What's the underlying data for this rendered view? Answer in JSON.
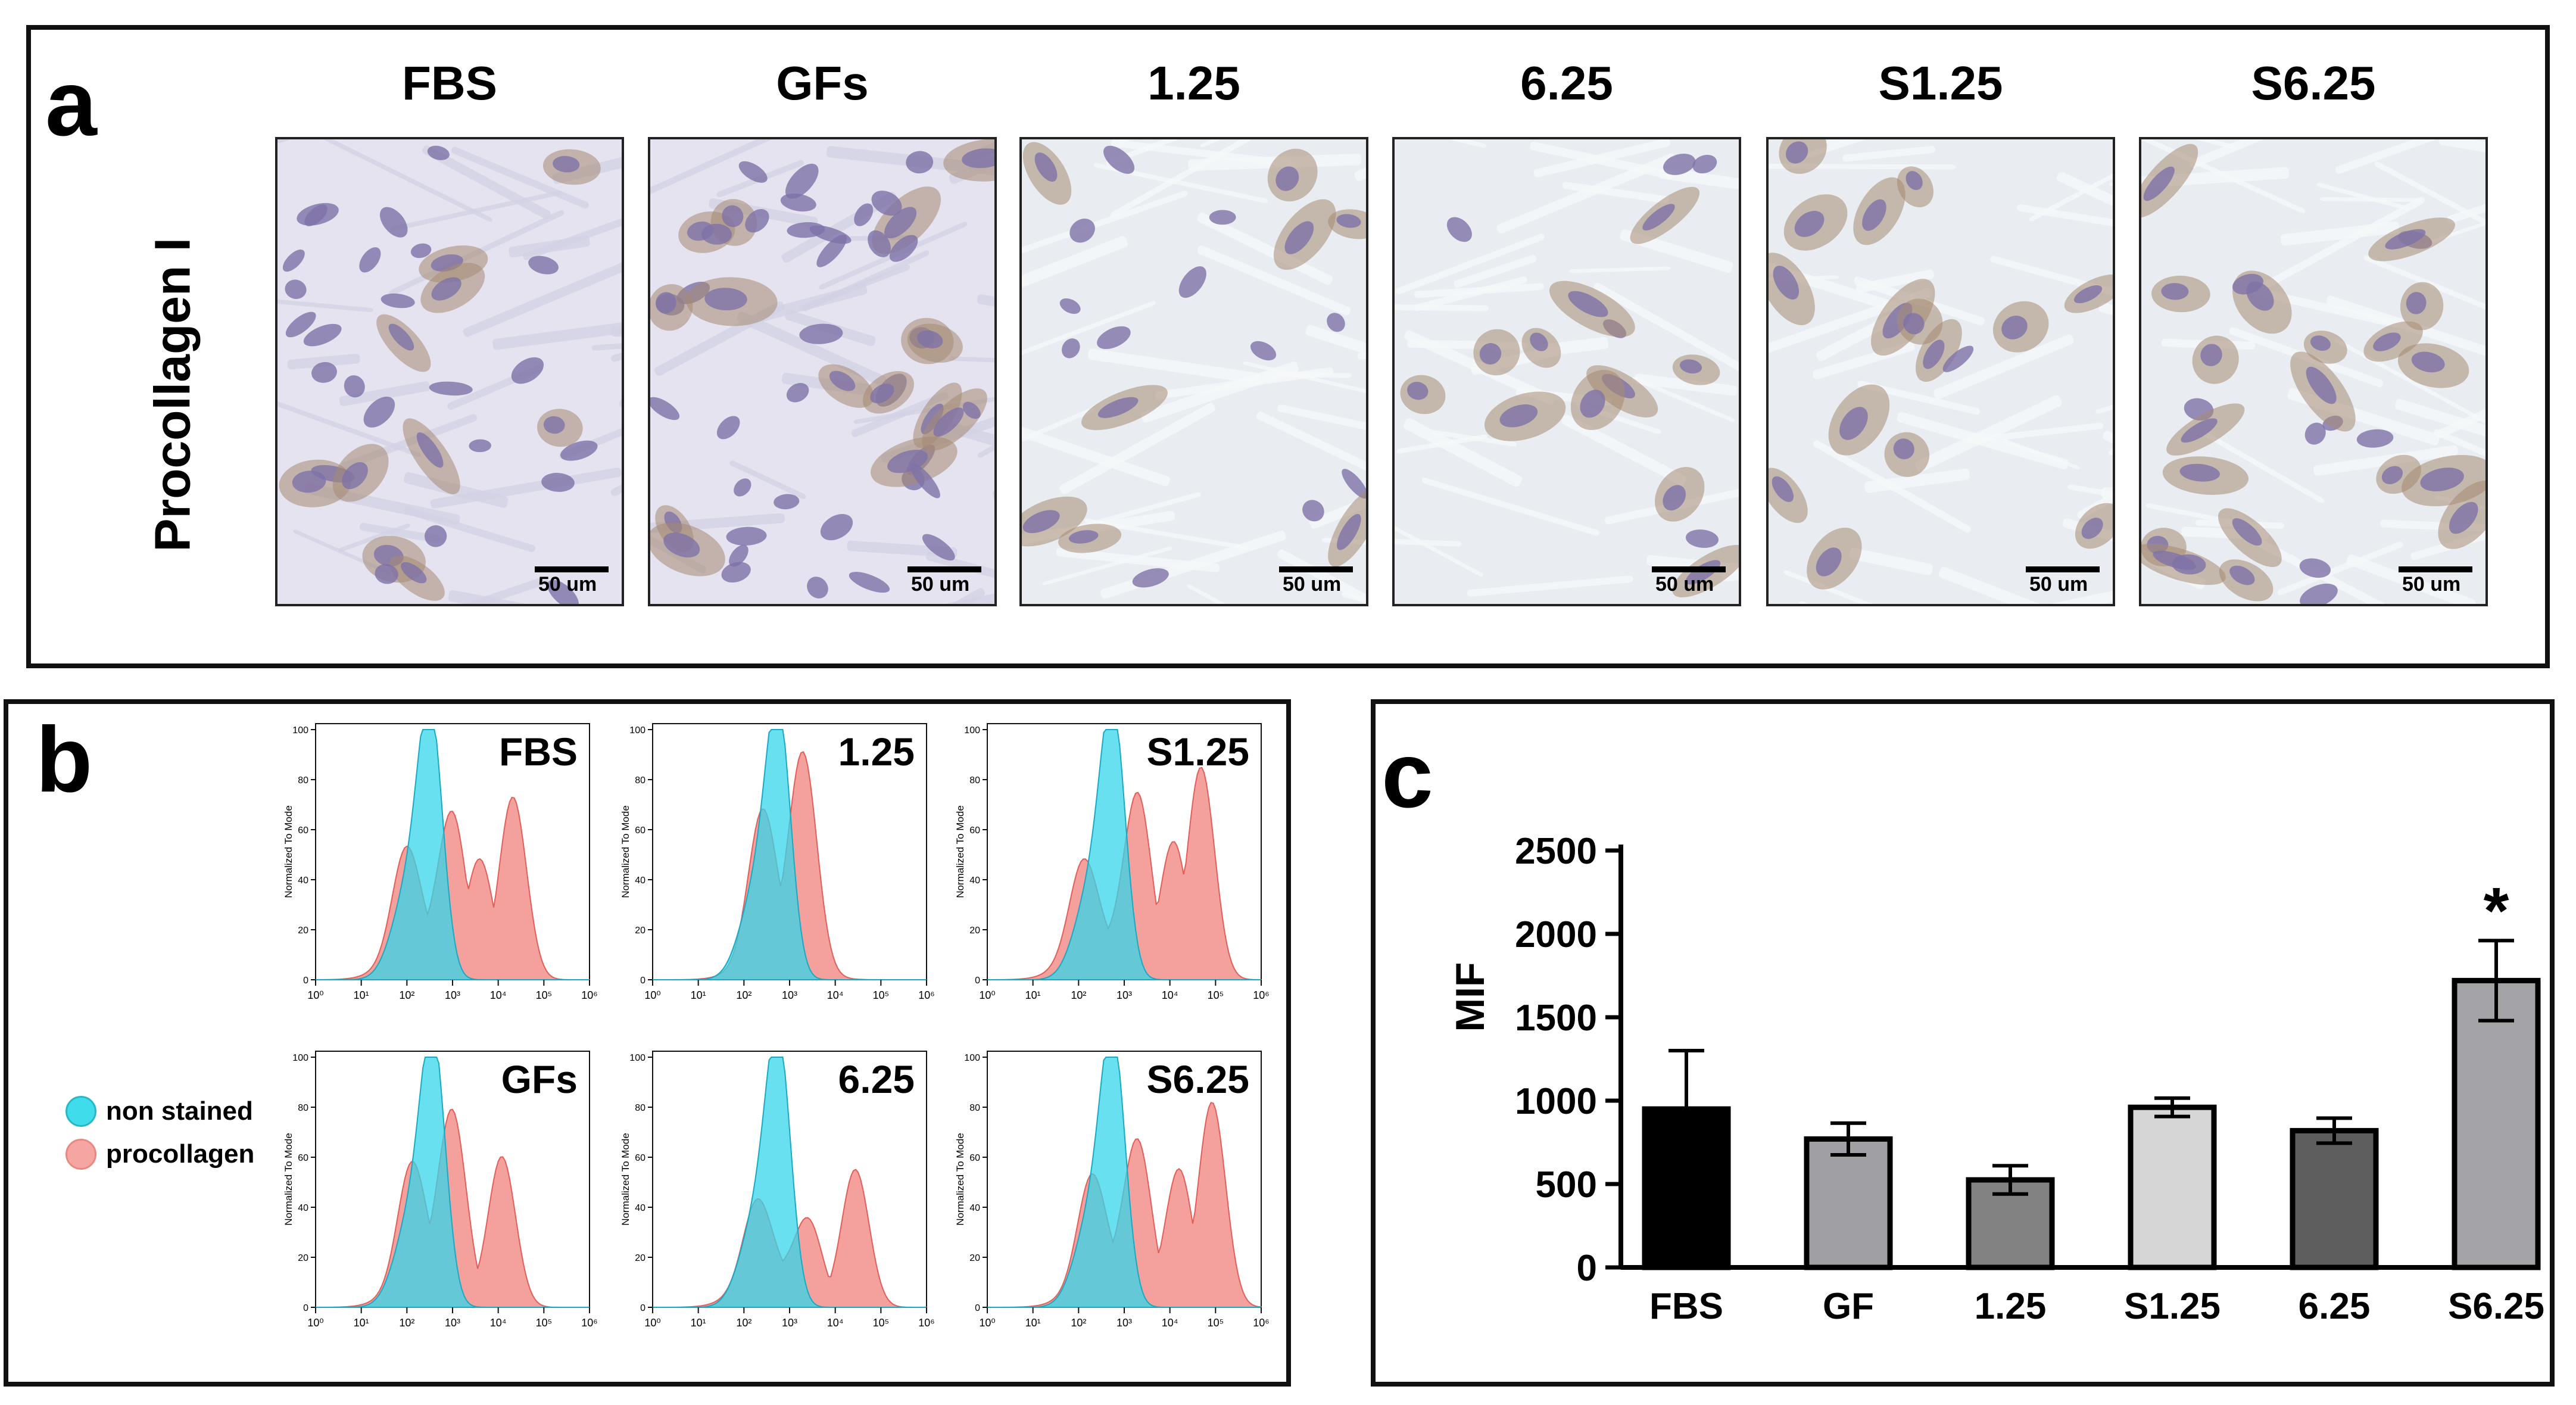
{
  "panel_a": {
    "letter": "a",
    "row_label": "Procollagen I",
    "columns": [
      "FBS",
      "GFs",
      "1.25",
      "6.25",
      "S1.25",
      "S6.25"
    ],
    "scale_bar_label": "50 um"
  },
  "panel_b": {
    "letter": "b",
    "y_axis_label": "Normalized To Mode",
    "y_ticks": [
      "0",
      "20",
      "40",
      "60",
      "80",
      "100"
    ],
    "x_ticks": [
      "10⁰",
      "10¹",
      "10²",
      "10³",
      "10⁴",
      "10⁵",
      "10⁶"
    ],
    "legend": [
      {
        "label": "non stained",
        "color": "#3fdcec"
      },
      {
        "label": "procollagen",
        "color": "#f28a86"
      }
    ],
    "histograms": [
      {
        "label": "FBS"
      },
      {
        "label": "1.25"
      },
      {
        "label": "S1.25"
      },
      {
        "label": "GFs"
      },
      {
        "label": "6.25"
      },
      {
        "label": "S6.25"
      }
    ]
  },
  "chart_data": {
    "type": "bar",
    "panel_letter": "c",
    "title": "",
    "xlabel": "",
    "ylabel": "MIF",
    "ylim": [
      0,
      2500
    ],
    "y_ticks": [
      0,
      500,
      1000,
      1500,
      2000,
      2500
    ],
    "categories": [
      "FBS",
      "GF",
      "1.25",
      "S1.25",
      "6.25",
      "S6.25"
    ],
    "values": [
      950,
      770,
      525,
      960,
      820,
      1720
    ],
    "errors": [
      350,
      95,
      85,
      55,
      75,
      240
    ],
    "bar_colors": [
      "#000000",
      "#a0a0a4",
      "#828282",
      "#d6d6d6",
      "#5e5e5e",
      "#a4a4a8"
    ],
    "annotations": [
      {
        "category": "S6.25",
        "text": "*"
      }
    ]
  },
  "colors": {
    "non_stained": "#3fdcec",
    "procollagen": "#f28a86",
    "overlap": "#7a97a6"
  }
}
